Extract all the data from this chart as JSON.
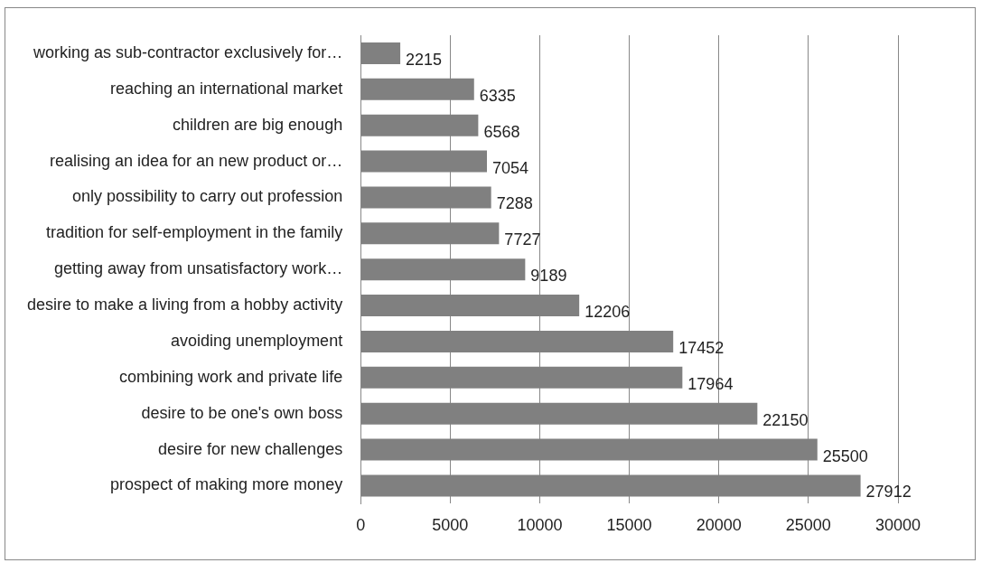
{
  "chart_data": {
    "type": "bar",
    "orientation": "horizontal",
    "categories": [
      "working as sub-contractor exclusively for…",
      "reaching an international market",
      "children are big enough",
      "realising an idea for an new product or…",
      "only possibility to carry out profession",
      "tradition for self-employment in the family",
      "getting away from unsatisfactory work…",
      "desire to make a living from a hobby activity",
      "avoiding unemployment",
      "combining work and private life",
      "desire to be one's own boss",
      "desire for new challenges",
      "prospect of making more money"
    ],
    "values": [
      2215,
      6335,
      6568,
      7054,
      7288,
      7727,
      9189,
      12206,
      17452,
      17964,
      22150,
      25500,
      27912
    ],
    "color": "#808080",
    "xlim": [
      0,
      30000
    ],
    "xticks": [
      0,
      5000,
      10000,
      15000,
      20000,
      25000,
      30000
    ],
    "grid": "x",
    "data_labels": true,
    "legend": false
  }
}
